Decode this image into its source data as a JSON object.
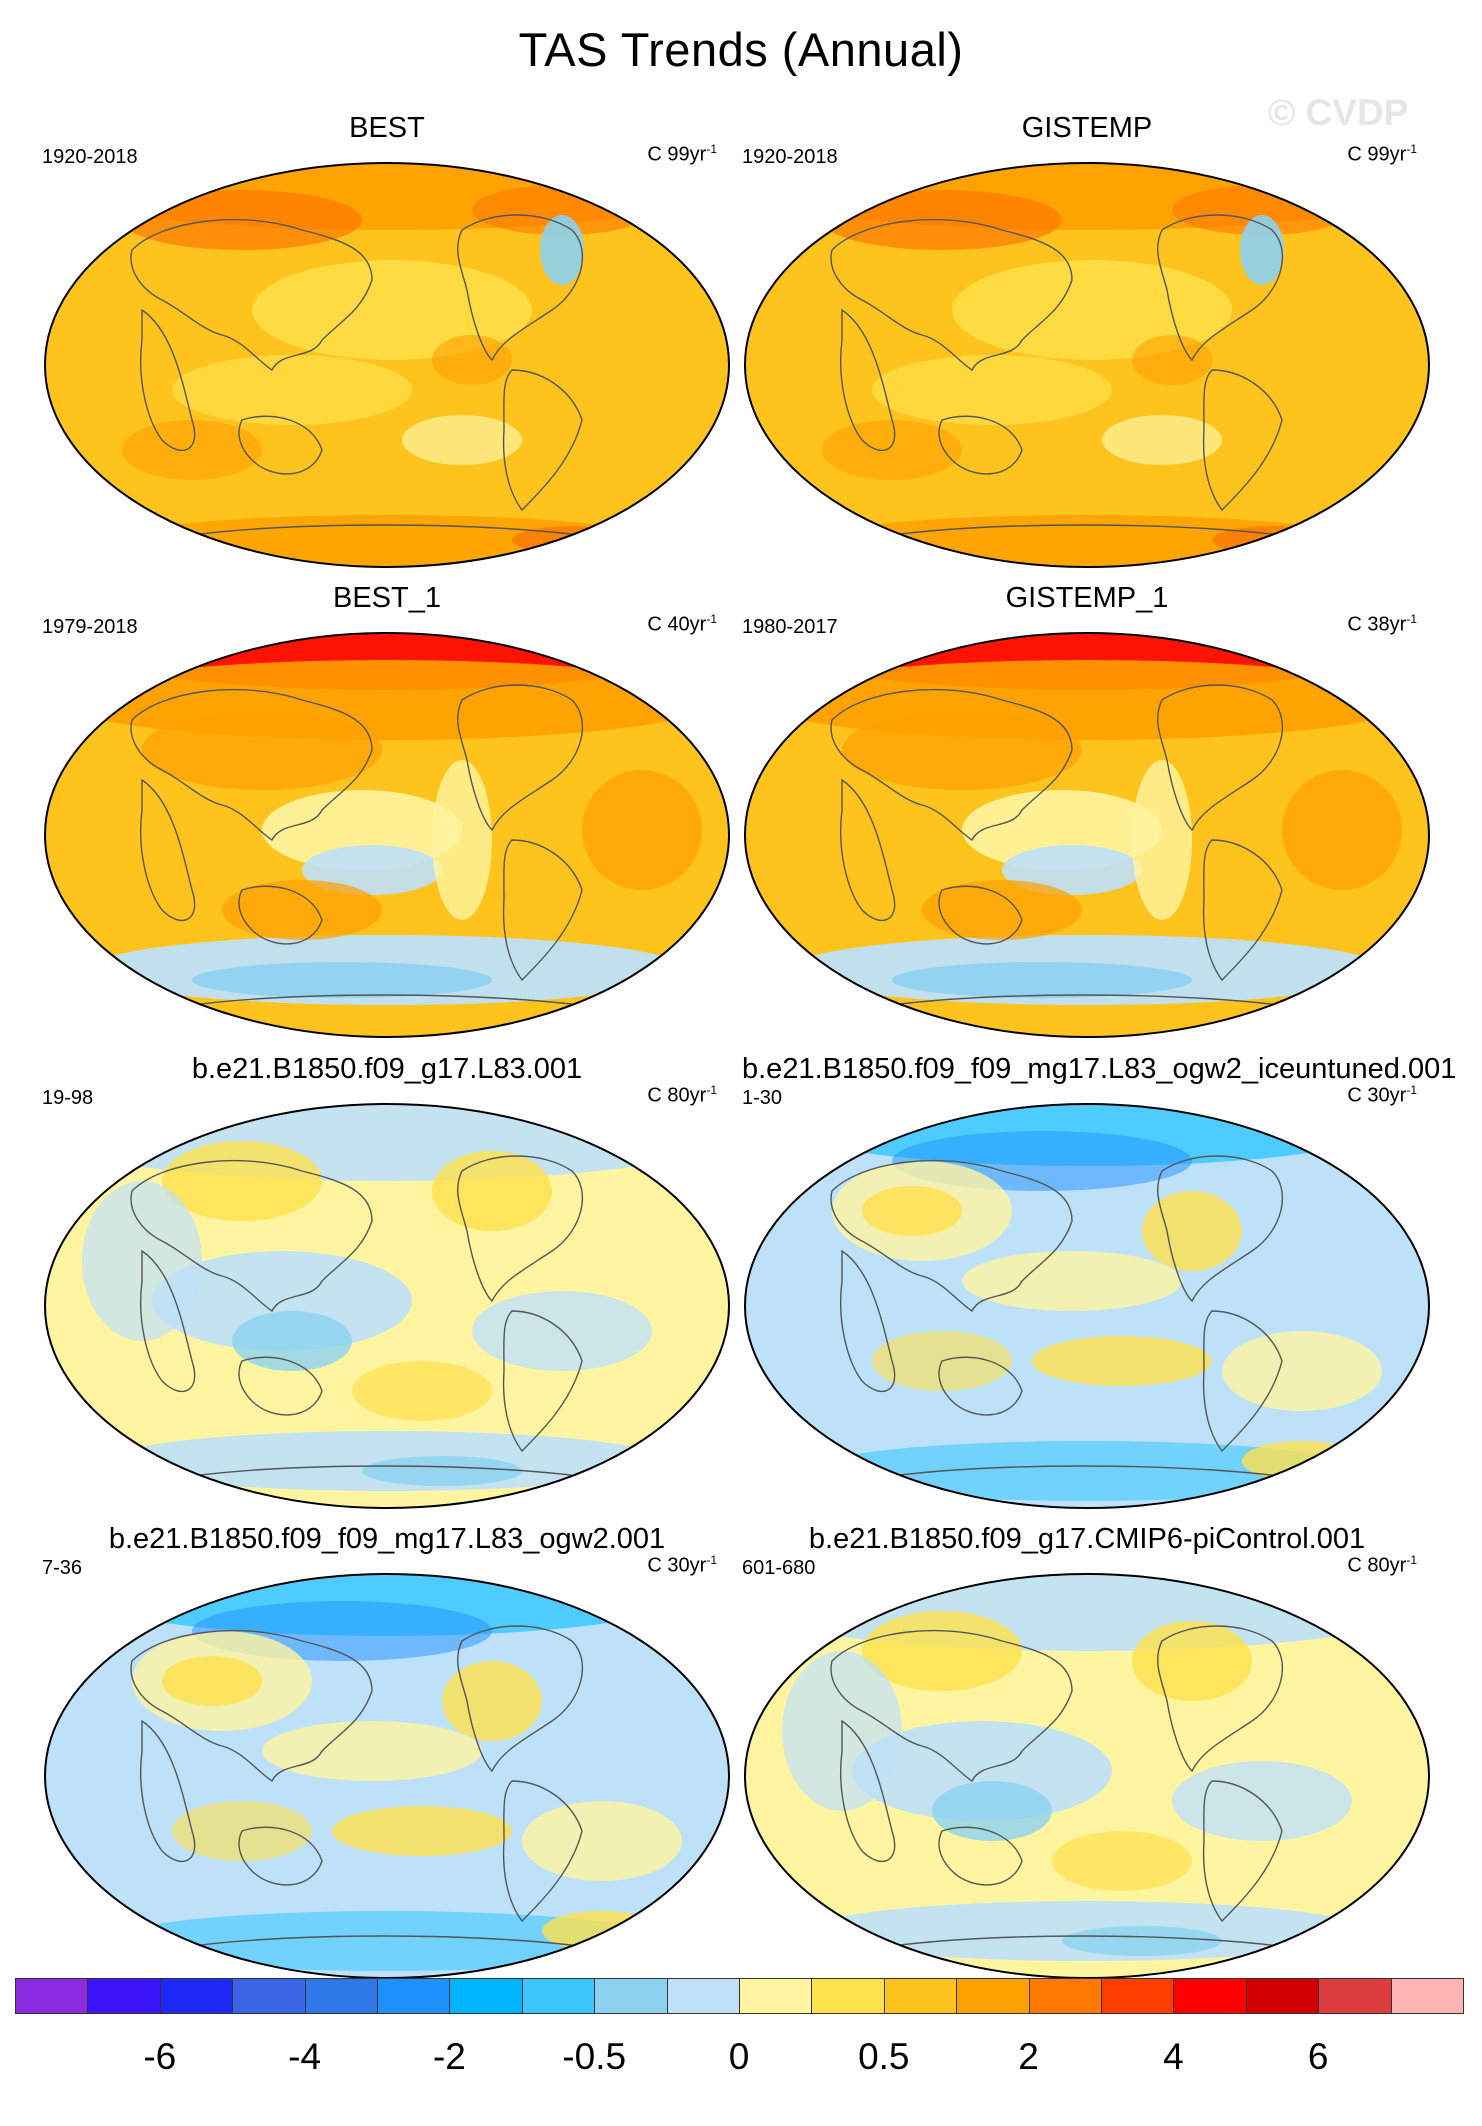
{
  "title": "TAS Trends (Annual)",
  "watermark": "© CVDP",
  "panels": [
    {
      "title": "BEST",
      "period": "1920-2018",
      "units_prefix": "C 99yr",
      "units_exp": "-1",
      "pattern": "warm"
    },
    {
      "title": "GISTEMP",
      "period": "1920-2018",
      "units_prefix": "C 99yr",
      "units_exp": "-1",
      "pattern": "warm"
    },
    {
      "title": "BEST_1",
      "period": "1979-2018",
      "units_prefix": "C 40yr",
      "units_exp": "-1",
      "pattern": "recent"
    },
    {
      "title": "GISTEMP_1",
      "period": "1980-2017",
      "units_prefix": "C 38yr",
      "units_exp": "-1",
      "pattern": "recent"
    },
    {
      "title": "b.e21.B1850.f09_g17.L83.001",
      "period": "19-98",
      "units_prefix": "C 80yr",
      "units_exp": "-1",
      "pattern": "control"
    },
    {
      "title": "b.e21.B1850.f09_f09_mg17.L83_ogw2_iceuntuned.001",
      "period": "1-30",
      "units_prefix": "C 30yr",
      "units_exp": "-1",
      "pattern": "cold"
    },
    {
      "title": "b.e21.B1850.f09_f09_mg17.L83_ogw2.001",
      "period": "7-36",
      "units_prefix": "C 30yr",
      "units_exp": "-1",
      "pattern": "cold"
    },
    {
      "title": "b.e21.B1850.f09_g17.CMIP6-piControl.001",
      "period": "601-680",
      "units_prefix": "C 80yr",
      "units_exp": "-1",
      "pattern": "control"
    }
  ],
  "colorbar": {
    "colors": [
      "#8a2be2",
      "#3c14fa",
      "#1e28f5",
      "#3c64e6",
      "#2d78e6",
      "#1e91ff",
      "#00b4ff",
      "#3cc8ff",
      "#8cd2f0",
      "#bee1fa",
      "#fff5a0",
      "#ffe14b",
      "#ffc31e",
      "#ffa000",
      "#ff7800",
      "#ff3c00",
      "#ff0000",
      "#d20000",
      "#dc3c3c",
      "#ffb4b4"
    ],
    "tick_labels": [
      "-6",
      "-4",
      "-2",
      "-0.5",
      "0",
      "0.5",
      "2",
      "4",
      "6"
    ],
    "tick_boundaries": [
      2,
      4,
      6,
      8,
      10,
      12,
      14,
      16,
      18
    ]
  }
}
